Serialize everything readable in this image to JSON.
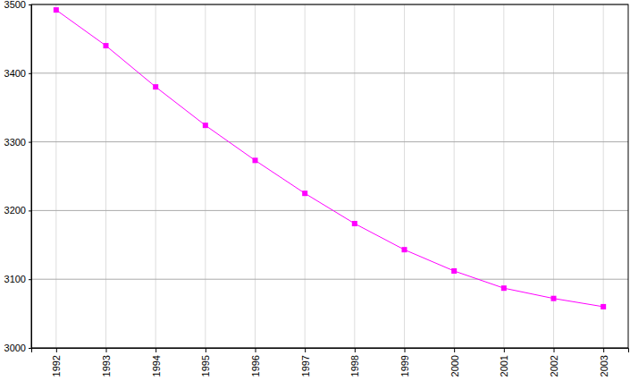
{
  "chart_data": {
    "type": "line",
    "x": [
      1992,
      1993,
      1994,
      1995,
      1996,
      1997,
      1998,
      1999,
      2000,
      2001,
      2002,
      2003
    ],
    "values": [
      3492,
      3440,
      3380,
      3324,
      3273,
      3225,
      3181,
      3143,
      3112,
      3087,
      3072,
      3060
    ],
    "color": "#ff00ff",
    "marker": "square",
    "xlim": [
      1991.5,
      2003.5
    ],
    "xticks": [
      1992,
      1993,
      1994,
      1995,
      1996,
      1997,
      1998,
      1999,
      2000,
      2001,
      2002,
      2003
    ],
    "ylim": [
      3000,
      3500
    ],
    "yticks": [
      3000,
      3100,
      3200,
      3300,
      3400,
      3500
    ],
    "grid": true
  }
}
